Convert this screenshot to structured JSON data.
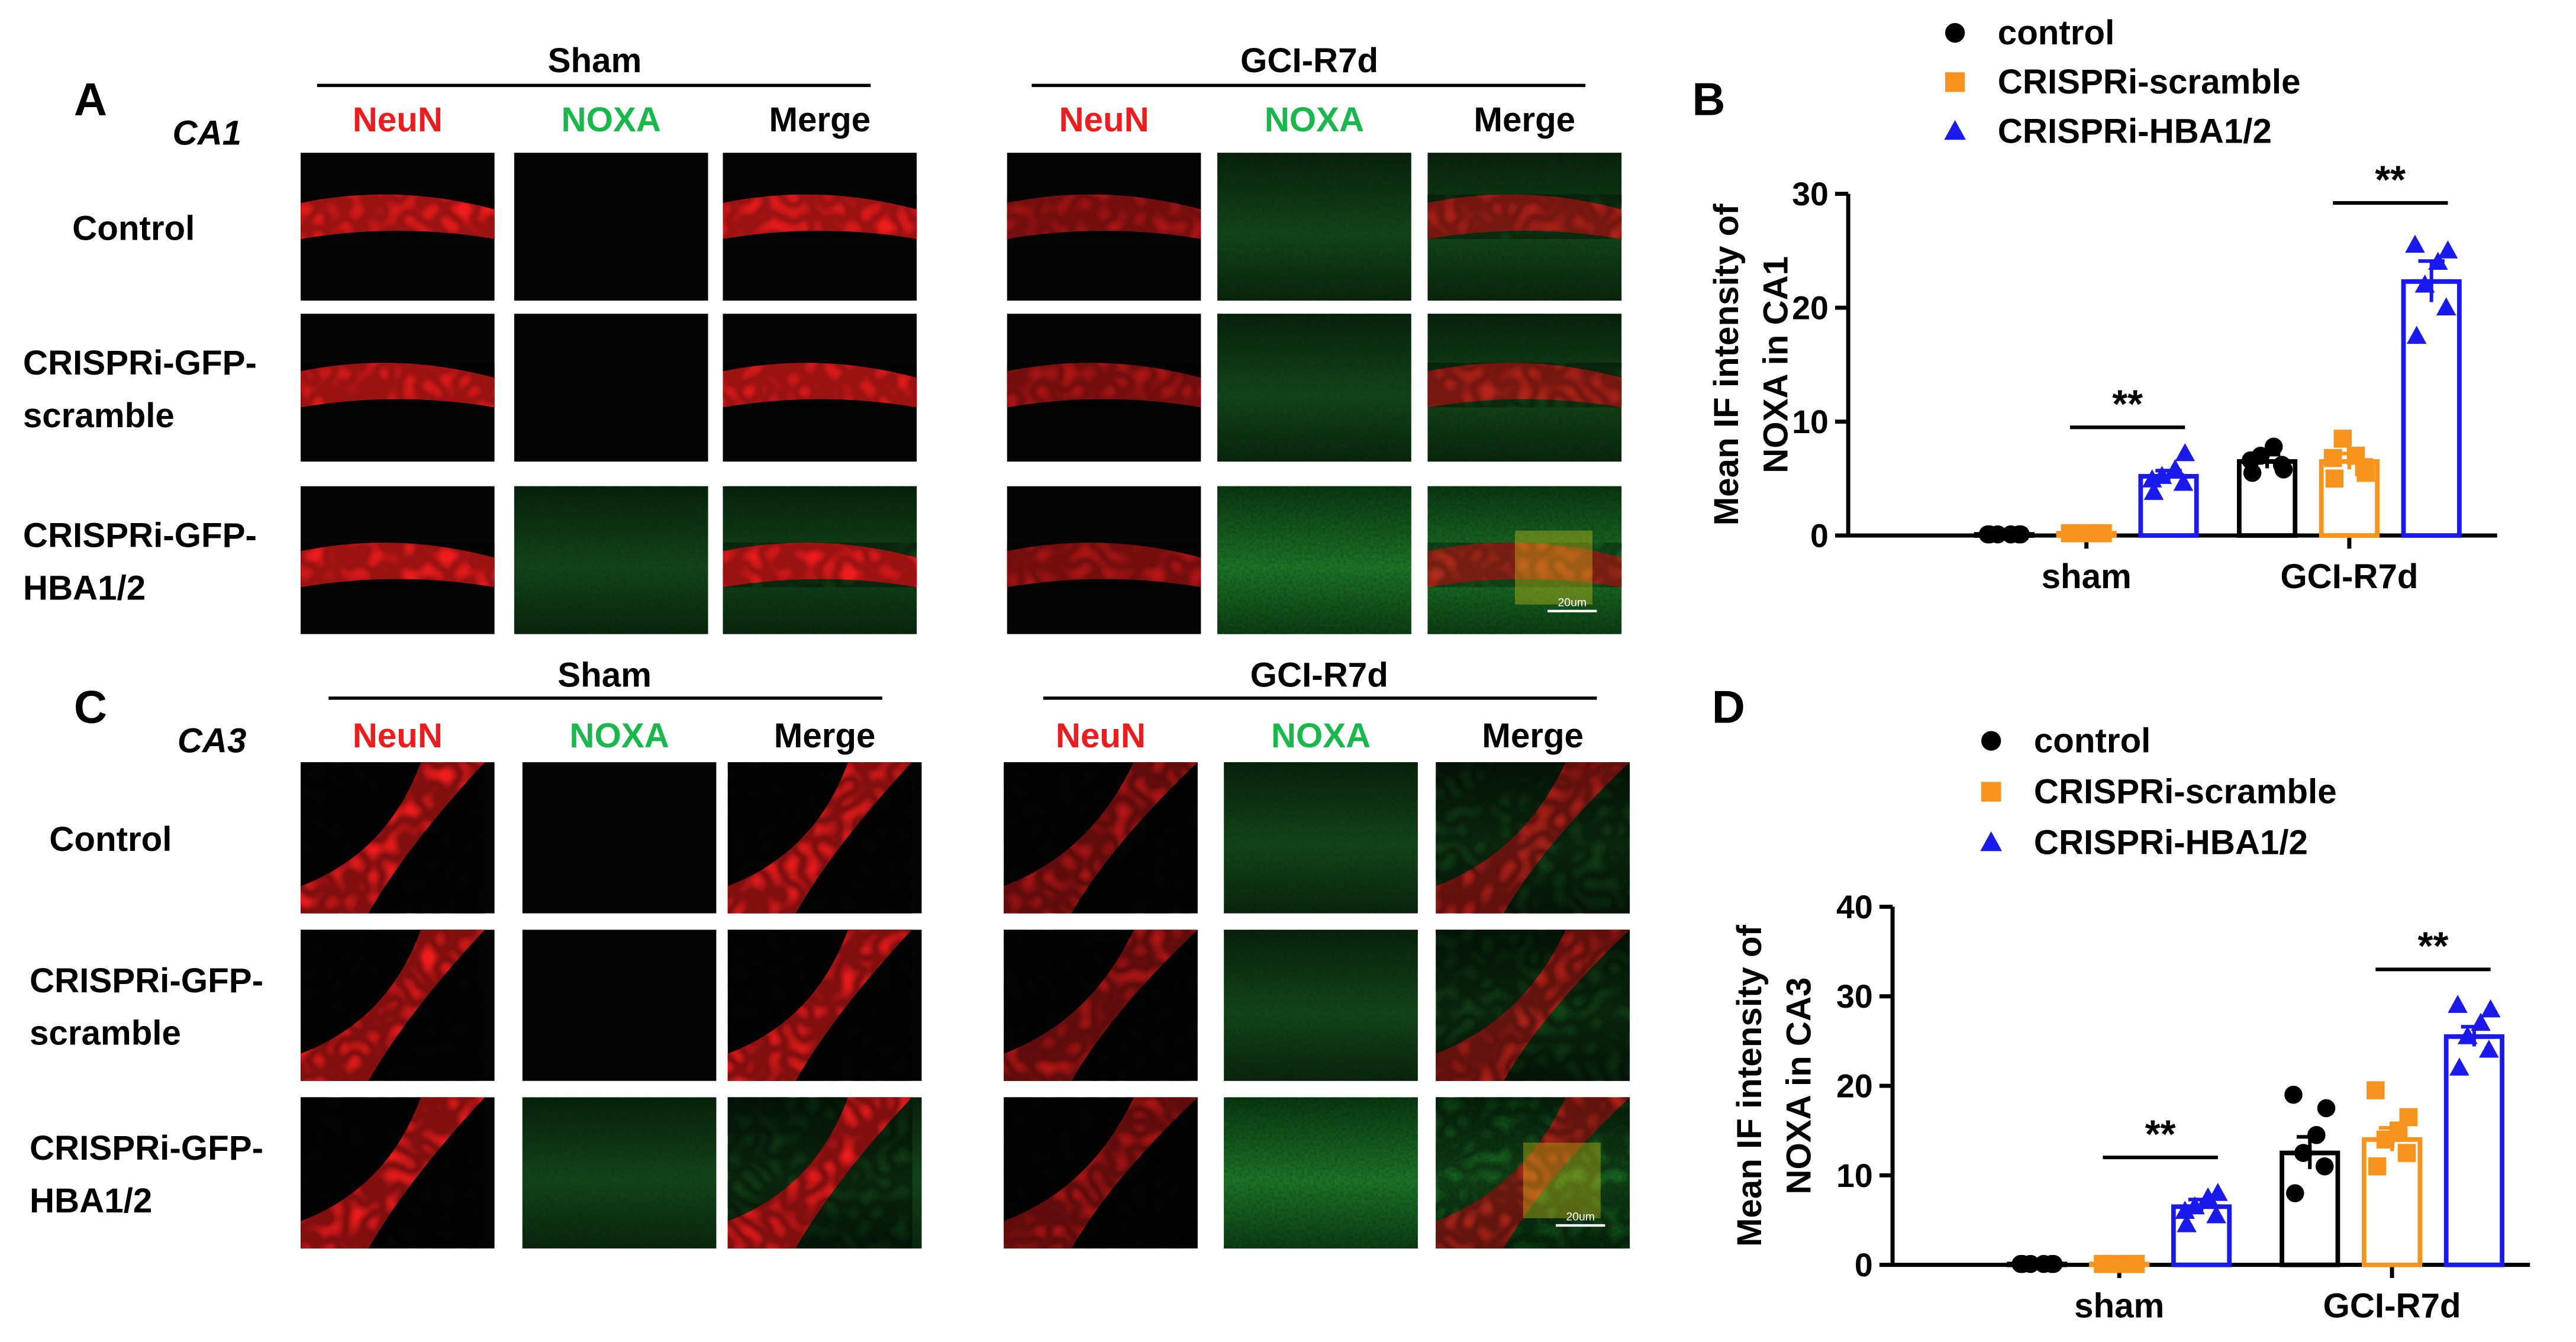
{
  "panel_a": {
    "letter": "A",
    "region": "CA1",
    "groups": [
      "Sham",
      "GCI-R7d"
    ],
    "channels": [
      "NeuN",
      "NOXA",
      "Merge"
    ],
    "rows": [
      [
        "Control"
      ],
      [
        "CRISPRi-GFP-",
        "scramble"
      ],
      [
        "CRISPRi-GFP-",
        "HBA1/2"
      ]
    ],
    "scale_bar": "20um"
  },
  "panel_c": {
    "letter": "C",
    "region": "CA3",
    "groups": [
      "Sham",
      "GCI-R7d"
    ],
    "channels": [
      "NeuN",
      "NOXA",
      "Merge"
    ],
    "rows": [
      [
        "Control"
      ],
      [
        "CRISPRi-GFP-",
        "scramble"
      ],
      [
        "CRISPRi-GFP-",
        "HBA1/2"
      ]
    ],
    "scale_bar": "20um"
  },
  "colors": {
    "neun": "#ee1c1c",
    "noxa": "#19b84a",
    "control": "#000000",
    "scramble": "#f7941d",
    "hba": "#1a1aee"
  },
  "chart_data": [
    {
      "letter": "B",
      "type": "bar",
      "title": "",
      "xlabel": "",
      "ylabel": [
        "Mean IF intensity of",
        "NOXA in CA1"
      ],
      "ylim": [
        0,
        30
      ],
      "yticks": [
        0,
        10,
        20,
        30
      ],
      "categories": [
        "sham",
        "GCI-R7d"
      ],
      "legend_position": "top",
      "series": [
        {
          "name": "control",
          "marker": "circle",
          "color": "#000000",
          "values": [
            0.1,
            6.5
          ],
          "sem": [
            0.05,
            0.6
          ],
          "points": [
            [
              0.1,
              0.1,
              0.1,
              0.1,
              0.1,
              0.1
            ],
            [
              5.5,
              6.2,
              7.0,
              7.8,
              5.8,
              6.6
            ]
          ]
        },
        {
          "name": "CRISPRi-scramble",
          "marker": "square",
          "color": "#f7941d",
          "values": [
            0.2,
            6.5
          ],
          "sem": [
            0.05,
            0.7
          ],
          "points": [
            [
              0.2,
              0.2,
              0.2,
              0.2,
              0.2,
              0.2
            ],
            [
              5.0,
              6.0,
              8.5,
              7.0,
              5.5,
              6.8
            ]
          ]
        },
        {
          "name": "CRISPRi-HBA1/2",
          "marker": "triangle",
          "color": "#1a1aee",
          "values": [
            5.2,
            22.3
          ],
          "sem": [
            0.5,
            1.8
          ],
          "points": [
            [
              3.8,
              4.6,
              5.2,
              5.8,
              7.2,
              4.9
            ],
            [
              17.5,
              20.0,
              22.0,
              24.0,
              25.0,
              25.5
            ]
          ]
        }
      ],
      "significance": [
        {
          "category": "sham",
          "label": "**",
          "at": 9.5
        },
        {
          "category": "GCI-R7d",
          "label": "**",
          "at": 29.2
        }
      ]
    },
    {
      "letter": "D",
      "type": "bar",
      "title": "",
      "xlabel": "",
      "ylabel": [
        "Mean IF intensity of",
        "NOXA in CA3"
      ],
      "ylim": [
        0,
        40
      ],
      "yticks": [
        0,
        10,
        20,
        30,
        40
      ],
      "categories": [
        "sham",
        "GCI-R7d"
      ],
      "legend_position": "top",
      "series": [
        {
          "name": "control",
          "marker": "circle",
          "color": "#000000",
          "values": [
            0.1,
            12.5
          ],
          "sem": [
            0.05,
            1.8
          ],
          "points": [
            [
              0.1,
              0.1,
              0.1,
              0.1,
              0.1,
              0.1
            ],
            [
              8.0,
              11.0,
              12.5,
              14.5,
              17.5,
              19.0
            ]
          ]
        },
        {
          "name": "CRISPRi-scramble",
          "marker": "square",
          "color": "#f7941d",
          "values": [
            0.1,
            14.0
          ],
          "sem": [
            0.05,
            1.3
          ],
          "points": [
            [
              0.1,
              0.1,
              0.1,
              0.1,
              0.1,
              0.1
            ],
            [
              11.0,
              12.5,
              14.0,
              15.0,
              16.5,
              19.5
            ]
          ]
        },
        {
          "name": "CRISPRi-HBA1/2",
          "marker": "triangle",
          "color": "#1a1aee",
          "values": [
            6.5,
            25.5
          ],
          "sem": [
            0.8,
            1.1
          ],
          "points": [
            [
              4.5,
              5.5,
              6.5,
              7.5,
              8.0,
              6.0
            ],
            [
              22.0,
              24.0,
              25.5,
              27.0,
              28.5,
              29.0
            ]
          ]
        }
      ],
      "significance": [
        {
          "category": "sham",
          "label": "**",
          "at": 12.0
        },
        {
          "category": "GCI-R7d",
          "label": "**",
          "at": 33.0
        }
      ]
    }
  ]
}
